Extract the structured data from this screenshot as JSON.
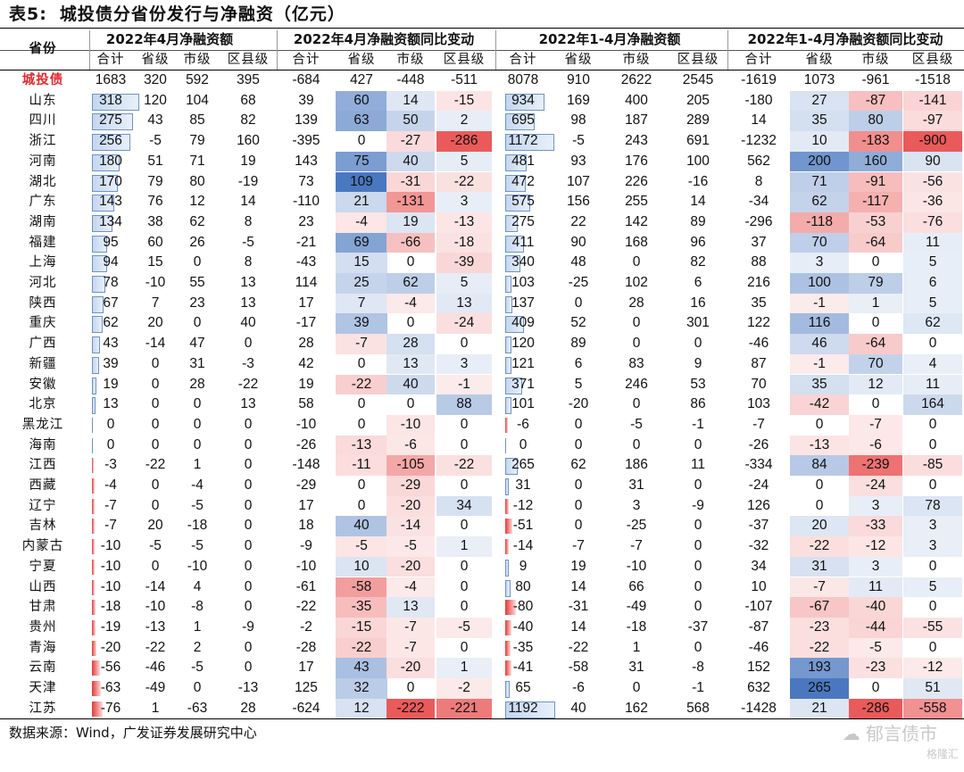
{
  "title": {
    "label": "表5:",
    "text": "城投债分省份发行与净融资（亿元）"
  },
  "header": {
    "province_label": "省份",
    "groups": [
      "2022年4月净融资额",
      "2022年4月净融资额同比变动",
      "2022年1-4月净融资额",
      "2022年1-4月净融资额同比变动"
    ],
    "subcols": [
      "合计",
      "省级",
      "市级",
      "区县级"
    ]
  },
  "table": {
    "rows": [
      {
        "name": "城投债",
        "values": [
          1683,
          320,
          592,
          395,
          -684,
          427,
          -448,
          -511,
          8078,
          910,
          2622,
          2545,
          -1619,
          1073,
          -961,
          -1518
        ]
      },
      {
        "name": "山东",
        "values": [
          318,
          120,
          104,
          68,
          39,
          60,
          14,
          -15,
          934,
          169,
          400,
          205,
          -180,
          27,
          -87,
          -141
        ]
      },
      {
        "name": "四川",
        "values": [
          275,
          43,
          85,
          82,
          139,
          63,
          50,
          2,
          695,
          98,
          187,
          289,
          14,
          35,
          80,
          -97
        ]
      },
      {
        "name": "浙江",
        "values": [
          256,
          -5,
          79,
          160,
          -395,
          0,
          -27,
          -286,
          1172,
          -5,
          243,
          691,
          -1232,
          10,
          -183,
          -900
        ]
      },
      {
        "name": "河南",
        "values": [
          180,
          51,
          71,
          19,
          143,
          75,
          40,
          5,
          481,
          93,
          176,
          100,
          562,
          200,
          160,
          90
        ]
      },
      {
        "name": "湖北",
        "values": [
          170,
          79,
          80,
          -19,
          73,
          109,
          -31,
          -22,
          472,
          107,
          226,
          -16,
          8,
          71,
          -91,
          -56
        ]
      },
      {
        "name": "广东",
        "values": [
          143,
          76,
          12,
          14,
          -110,
          21,
          -131,
          3,
          575,
          156,
          255,
          14,
          -34,
          62,
          -117,
          -36
        ]
      },
      {
        "name": "湖南",
        "values": [
          134,
          38,
          62,
          8,
          23,
          -4,
          19,
          -13,
          275,
          22,
          142,
          89,
          -296,
          -118,
          -53,
          -76
        ]
      },
      {
        "name": "福建",
        "values": [
          95,
          60,
          26,
          -5,
          -21,
          69,
          -66,
          -18,
          411,
          90,
          168,
          96,
          37,
          70,
          -64,
          11
        ]
      },
      {
        "name": "上海",
        "values": [
          94,
          15,
          0,
          8,
          -43,
          15,
          0,
          -39,
          340,
          48,
          0,
          82,
          88,
          3,
          0,
          5
        ]
      },
      {
        "name": "河北",
        "values": [
          78,
          -10,
          55,
          13,
          114,
          25,
          62,
          5,
          103,
          -25,
          102,
          6,
          216,
          100,
          79,
          6
        ]
      },
      {
        "name": "陕西",
        "values": [
          67,
          7,
          23,
          13,
          17,
          7,
          -4,
          13,
          137,
          0,
          28,
          16,
          35,
          -1,
          1,
          5
        ]
      },
      {
        "name": "重庆",
        "values": [
          62,
          20,
          0,
          40,
          -17,
          39,
          0,
          -24,
          409,
          52,
          0,
          301,
          122,
          116,
          0,
          62
        ]
      },
      {
        "name": "广西",
        "values": [
          43,
          -14,
          47,
          0,
          28,
          -7,
          28,
          0,
          120,
          89,
          0,
          0,
          -46,
          46,
          -64,
          0
        ]
      },
      {
        "name": "新疆",
        "values": [
          39,
          0,
          31,
          -3,
          42,
          0,
          13,
          3,
          121,
          6,
          83,
          9,
          87,
          -1,
          70,
          4
        ]
      },
      {
        "name": "安徽",
        "values": [
          19,
          0,
          28,
          -22,
          19,
          -22,
          40,
          -1,
          371,
          5,
          246,
          53,
          70,
          35,
          12,
          11
        ]
      },
      {
        "name": "北京",
        "values": [
          13,
          0,
          0,
          13,
          58,
          0,
          0,
          88,
          101,
          -20,
          0,
          86,
          103,
          -42,
          0,
          164
        ]
      },
      {
        "name": "黑龙江",
        "values": [
          0,
          0,
          0,
          0,
          -10,
          0,
          -10,
          0,
          -6,
          0,
          -5,
          -1,
          -7,
          0,
          -7,
          0
        ]
      },
      {
        "name": "海南",
        "values": [
          0,
          0,
          0,
          0,
          -26,
          -13,
          -6,
          0,
          0,
          0,
          0,
          0,
          -26,
          -13,
          -6,
          0
        ]
      },
      {
        "name": "江西",
        "values": [
          -3,
          -22,
          1,
          0,
          -148,
          -11,
          -105,
          -22,
          265,
          62,
          186,
          11,
          -334,
          84,
          -239,
          -85
        ]
      },
      {
        "name": "西藏",
        "values": [
          -4,
          0,
          -4,
          0,
          -29,
          0,
          -29,
          0,
          31,
          0,
          31,
          0,
          -24,
          0,
          -24,
          0
        ]
      },
      {
        "name": "辽宁",
        "values": [
          -7,
          0,
          -5,
          0,
          17,
          0,
          -20,
          34,
          -12,
          0,
          3,
          -9,
          126,
          0,
          3,
          78
        ]
      },
      {
        "name": "吉林",
        "values": [
          -7,
          20,
          -18,
          0,
          18,
          40,
          -14,
          0,
          -51,
          0,
          -25,
          0,
          -37,
          20,
          -33,
          3
        ]
      },
      {
        "name": "内蒙古",
        "values": [
          -10,
          -5,
          -5,
          0,
          -9,
          -5,
          -5,
          1,
          -14,
          -7,
          -7,
          0,
          -32,
          -22,
          -12,
          3
        ]
      },
      {
        "name": "宁夏",
        "values": [
          -10,
          0,
          -10,
          0,
          -10,
          10,
          -20,
          0,
          9,
          19,
          -10,
          0,
          34,
          31,
          3,
          0
        ]
      },
      {
        "name": "山西",
        "values": [
          -10,
          -14,
          4,
          0,
          -61,
          -58,
          -4,
          0,
          80,
          14,
          66,
          0,
          10,
          -7,
          11,
          5
        ]
      },
      {
        "name": "甘肃",
        "values": [
          -18,
          -10,
          -8,
          0,
          -22,
          -35,
          13,
          0,
          -80,
          -31,
          -49,
          0,
          -107,
          -67,
          -40,
          0
        ]
      },
      {
        "name": "贵州",
        "values": [
          -19,
          -13,
          1,
          -9,
          -2,
          -15,
          -7,
          -5,
          -40,
          14,
          -18,
          -37,
          -87,
          -23,
          -44,
          -55
        ]
      },
      {
        "name": "青海",
        "values": [
          -20,
          -22,
          2,
          0,
          -28,
          -22,
          -7,
          0,
          -35,
          -22,
          1,
          0,
          -46,
          -22,
          -5,
          0
        ]
      },
      {
        "name": "云南",
        "values": [
          -56,
          -46,
          -5,
          0,
          17,
          43,
          -20,
          1,
          -41,
          -58,
          31,
          -8,
          152,
          193,
          -23,
          -12
        ]
      },
      {
        "name": "天津",
        "values": [
          -63,
          -49,
          0,
          -13,
          125,
          32,
          0,
          -2,
          65,
          -6,
          0,
          -1,
          632,
          265,
          0,
          51
        ]
      },
      {
        "name": "江苏",
        "values": [
          -76,
          1,
          -63,
          28,
          -624,
          12,
          -222,
          -221,
          1192,
          40,
          162,
          568,
          -1428,
          21,
          -286,
          -558
        ]
      }
    ]
  },
  "footer": {
    "source": "数据来源：Wind，广发证券发展研究中心"
  },
  "watermark": {
    "text": "郁言债市",
    "sub": "格隆汇"
  },
  "colors": {
    "highlight_row": "#e3262b",
    "positive": "#4a78c0",
    "negative": "#ea5a5a",
    "bar_fill": "#c4d6ef",
    "bar_border": "#6d93cb",
    "neg_bar": "#e53935"
  }
}
